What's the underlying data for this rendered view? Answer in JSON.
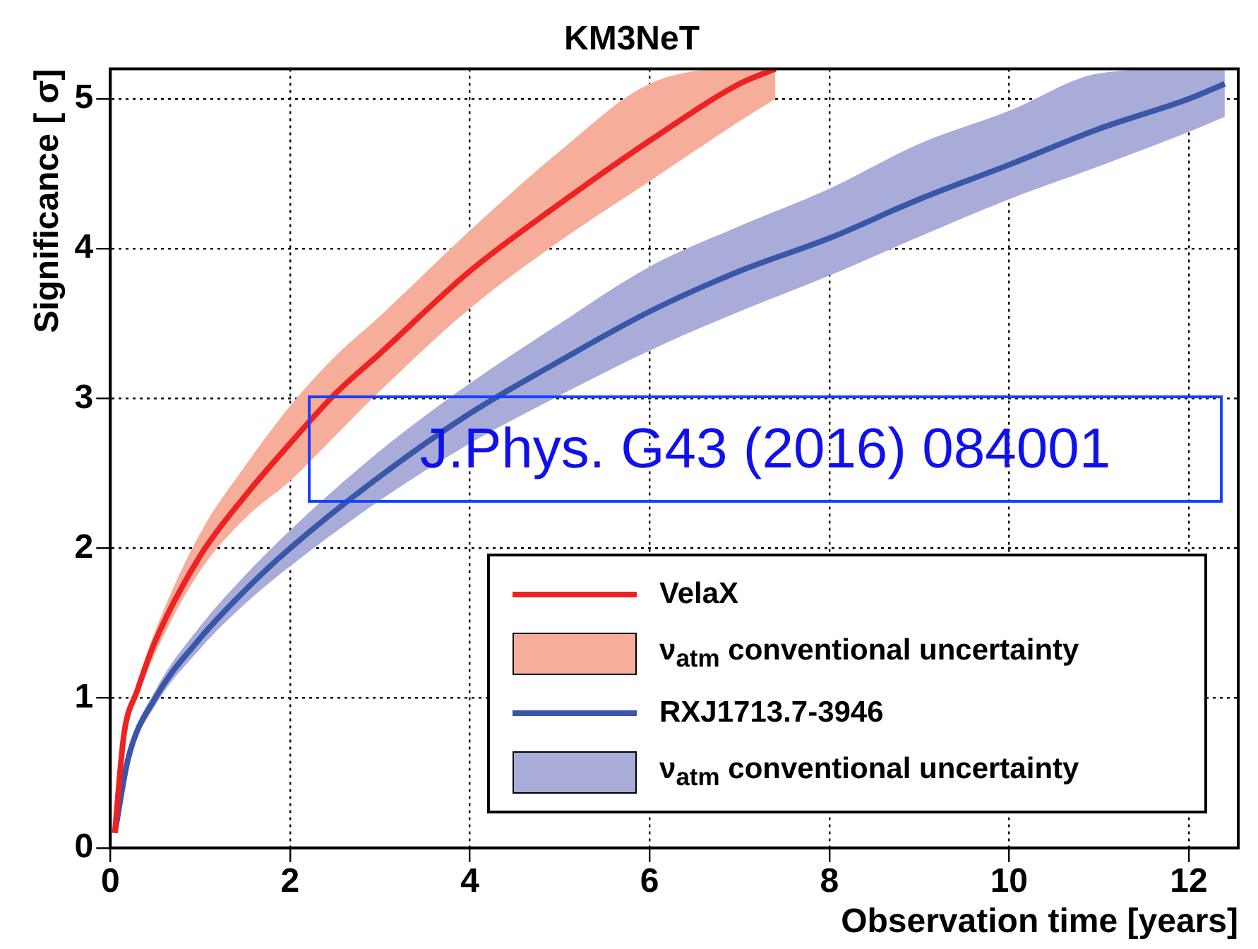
{
  "chart_data": {
    "type": "line",
    "title": "KM3NeT",
    "xlabel": "Observation time [years]",
    "ylabel": "Significance [ σ]",
    "xlim": [
      0,
      12.55
    ],
    "ylim": [
      0,
      5.2
    ],
    "xticks": [
      0,
      2,
      4,
      6,
      8,
      10,
      12
    ],
    "yticks": [
      0,
      1,
      2,
      3,
      4,
      5
    ],
    "grid": true,
    "legend": "bottom right",
    "line_style": "solid",
    "marker": "none",
    "annotations": [
      "J.Phys. G43 (2016) 084001"
    ],
    "series": [
      {
        "name": "VelaX",
        "color": "#ee2222",
        "x": [
          0.05,
          0.15,
          0.3,
          0.5,
          1,
          1.5,
          2,
          2.5,
          3,
          4,
          5,
          6,
          7,
          7.4
        ],
        "values": [
          0.1,
          0.75,
          1.05,
          1.38,
          1.95,
          2.35,
          2.7,
          3.03,
          3.3,
          3.85,
          4.3,
          4.72,
          5.1,
          5.2
        ],
        "lower": [
          0.1,
          0.72,
          1.0,
          1.3,
          1.85,
          2.2,
          2.45,
          2.75,
          3.05,
          3.6,
          4.05,
          4.45,
          4.85,
          5.0
        ],
        "upper": [
          0.1,
          0.78,
          1.1,
          1.45,
          2.1,
          2.55,
          2.95,
          3.28,
          3.55,
          4.12,
          4.65,
          5.1,
          5.2,
          5.2
        ]
      },
      {
        "type": "area",
        "name": "ν$_{atm}$ conventional uncertainty",
        "color": "#f6ad9a"
      },
      {
        "name": "RXJ1713.7-3946",
        "color": "#3a56a8",
        "x": [
          0.05,
          0.2,
          0.5,
          1,
          1.5,
          2,
          3,
          4,
          5,
          6,
          7,
          8,
          9,
          10,
          11,
          12,
          12.4
        ],
        "values": [
          0.1,
          0.6,
          1.0,
          1.4,
          1.72,
          2.0,
          2.48,
          2.9,
          3.25,
          3.58,
          3.85,
          4.07,
          4.33,
          4.56,
          4.8,
          5.0,
          5.1
        ],
        "lower": [
          0.1,
          0.57,
          0.95,
          1.33,
          1.63,
          1.88,
          2.32,
          2.7,
          3.02,
          3.32,
          3.58,
          3.82,
          4.08,
          4.33,
          4.55,
          4.78,
          4.88
        ],
        "upper": [
          0.1,
          0.63,
          1.05,
          1.48,
          1.82,
          2.12,
          2.65,
          3.1,
          3.5,
          3.88,
          4.15,
          4.4,
          4.7,
          4.92,
          5.17,
          5.2,
          5.2
        ]
      },
      {
        "type": "area",
        "name": "ν$_{atm}$ conventional uncertainty",
        "color": "#a9acd8"
      }
    ]
  }
}
